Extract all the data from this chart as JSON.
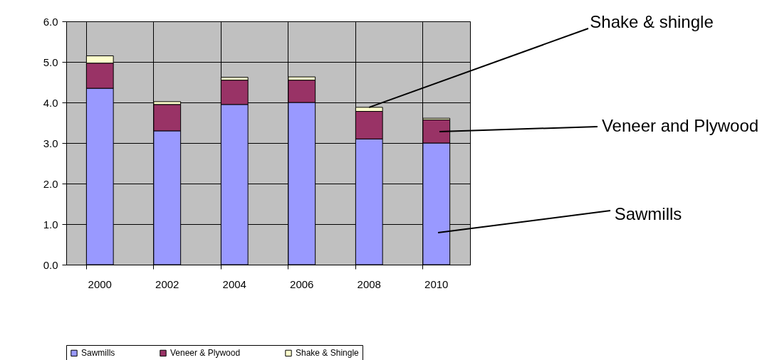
{
  "chart_data": {
    "type": "bar",
    "stacked": true,
    "categories": [
      "2000",
      "2002",
      "2004",
      "2006",
      "2008",
      "2010"
    ],
    "series": [
      {
        "name": "Sawmills",
        "color": "#9999ff",
        "values": [
          4.35,
          3.3,
          3.95,
          4.0,
          3.1,
          3.0
        ]
      },
      {
        "name": "Veneer & Plywood",
        "color": "#993366",
        "values": [
          0.62,
          0.65,
          0.6,
          0.55,
          0.68,
          0.57
        ]
      },
      {
        "name": "Shake & Shingle",
        "color": "#ffffcc",
        "values": [
          0.18,
          0.07,
          0.07,
          0.08,
          0.1,
          0.04
        ]
      }
    ],
    "ylim": [
      0,
      6
    ],
    "yticks": [
      {
        "value": 0,
        "label": "0.0"
      },
      {
        "value": 1,
        "label": "1.0"
      },
      {
        "value": 2,
        "label": "2.0"
      },
      {
        "value": 3,
        "label": "3.0"
      },
      {
        "value": 4,
        "label": "4.0"
      },
      {
        "value": 5,
        "label": "5.0"
      },
      {
        "value": 6,
        "label": "6.0"
      }
    ],
    "grid": true,
    "legend": "bottom",
    "annotations": [
      {
        "text": "Shake & shingle",
        "x": "2008",
        "y": 3.88
      },
      "Veneer and Plywood",
      "Sawmills"
    ]
  }
}
